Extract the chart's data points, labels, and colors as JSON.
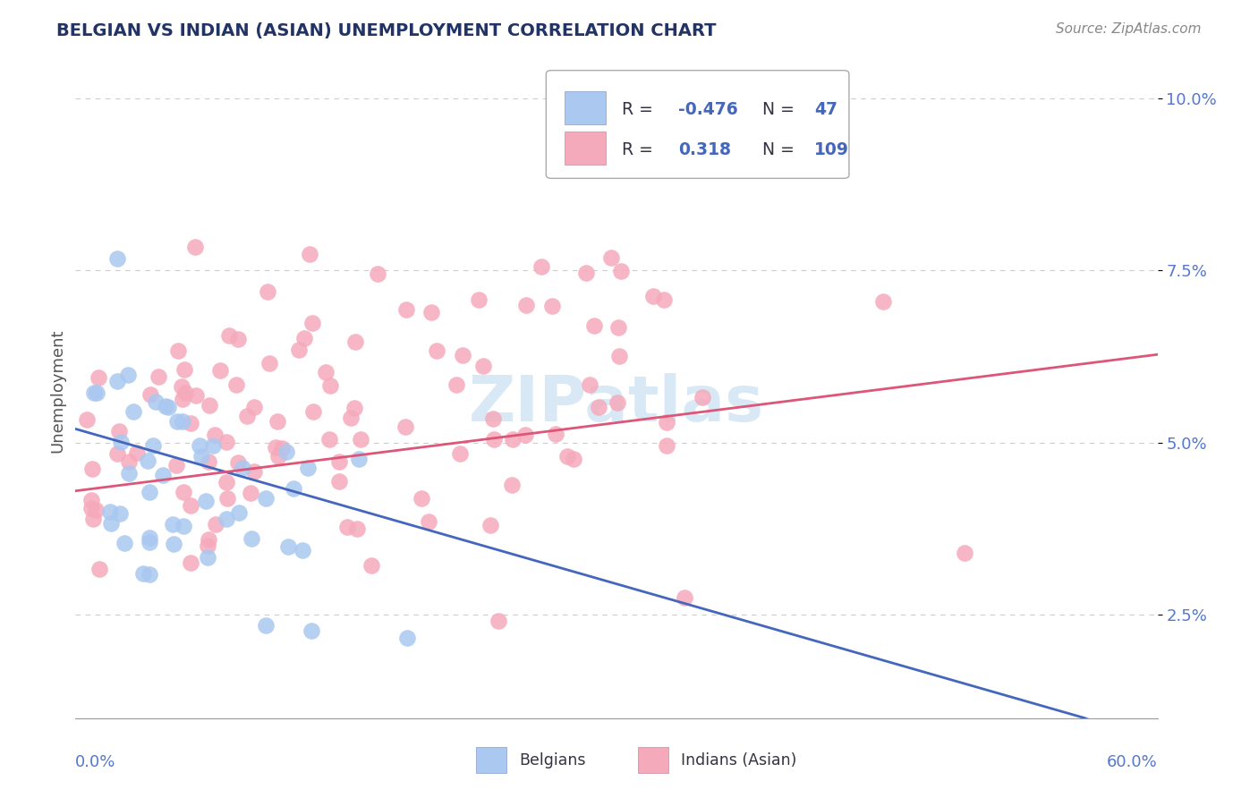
{
  "title": "BELGIAN VS INDIAN (ASIAN) UNEMPLOYMENT CORRELATION CHART",
  "source": "Source: ZipAtlas.com",
  "ylabel": "Unemployment",
  "yticks": [
    0.025,
    0.05,
    0.075,
    0.1
  ],
  "ytick_labels": [
    "2.5%",
    "5.0%",
    "7.5%",
    "10.0%"
  ],
  "xmin": 0.0,
  "xmax": 0.6,
  "ymin": 0.01,
  "ymax": 0.105,
  "belgian_R": -0.476,
  "belgian_N": 47,
  "indian_R": 0.318,
  "indian_N": 109,
  "belgian_color": "#aac8f0",
  "indian_color": "#f5aabb",
  "belgian_line_color": "#4466bb",
  "indian_line_color": "#dd5577",
  "text_color": "#5577cc",
  "watermark_color": "#d8e8f5",
  "legend_text_color": "#4466bb",
  "legend_value_color": "#4466bb",
  "grid_color": "#cccccc",
  "title_color": "#223366",
  "source_color": "#888888",
  "legend_belgian_label": "Belgians",
  "legend_indian_label": "Indians (Asian)"
}
